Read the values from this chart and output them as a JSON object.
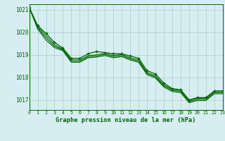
{
  "title": "Graphe pression niveau de la mer (hPa)",
  "background_color": "#d6eef2",
  "plot_bg": "#d6eef2",
  "grid_color": "#a8cfc8",
  "line_color": "#006600",
  "xlim": [
    0,
    23
  ],
  "ylim": [
    1016.55,
    1021.25
  ],
  "yticks": [
    1017,
    1018,
    1019,
    1020,
    1021
  ],
  "xticks": [
    0,
    1,
    2,
    3,
    4,
    5,
    6,
    7,
    8,
    9,
    10,
    11,
    12,
    13,
    14,
    15,
    16,
    17,
    18,
    19,
    20,
    21,
    22,
    23
  ],
  "series": [
    [
      1021.1,
      1020.3,
      1019.95,
      1019.55,
      1019.3,
      1018.85,
      1018.85,
      1019.05,
      1019.15,
      1019.1,
      1019.05,
      1019.05,
      1018.95,
      1018.85,
      1018.3,
      1018.15,
      1017.75,
      1017.5,
      1017.45,
      1017.0,
      1017.1,
      1017.1,
      1017.4,
      1017.4
    ],
    [
      1021.1,
      1020.25,
      1019.85,
      1019.45,
      1019.25,
      1018.78,
      1018.78,
      1018.97,
      1019.0,
      1019.07,
      1018.97,
      1019.02,
      1018.87,
      1018.78,
      1018.22,
      1018.07,
      1017.67,
      1017.47,
      1017.42,
      1016.97,
      1017.07,
      1017.07,
      1017.37,
      1017.37
    ],
    [
      1021.1,
      1020.2,
      1019.75,
      1019.38,
      1019.22,
      1018.72,
      1018.72,
      1018.92,
      1018.95,
      1019.02,
      1018.92,
      1018.97,
      1018.82,
      1018.72,
      1018.17,
      1018.02,
      1017.62,
      1017.42,
      1017.37,
      1016.92,
      1017.02,
      1017.02,
      1017.32,
      1017.32
    ],
    [
      1021.1,
      1020.15,
      1019.65,
      1019.32,
      1019.18,
      1018.67,
      1018.67,
      1018.87,
      1018.9,
      1018.97,
      1018.87,
      1018.92,
      1018.77,
      1018.67,
      1018.12,
      1017.97,
      1017.57,
      1017.37,
      1017.32,
      1016.87,
      1016.97,
      1016.97,
      1017.27,
      1017.27
    ]
  ]
}
